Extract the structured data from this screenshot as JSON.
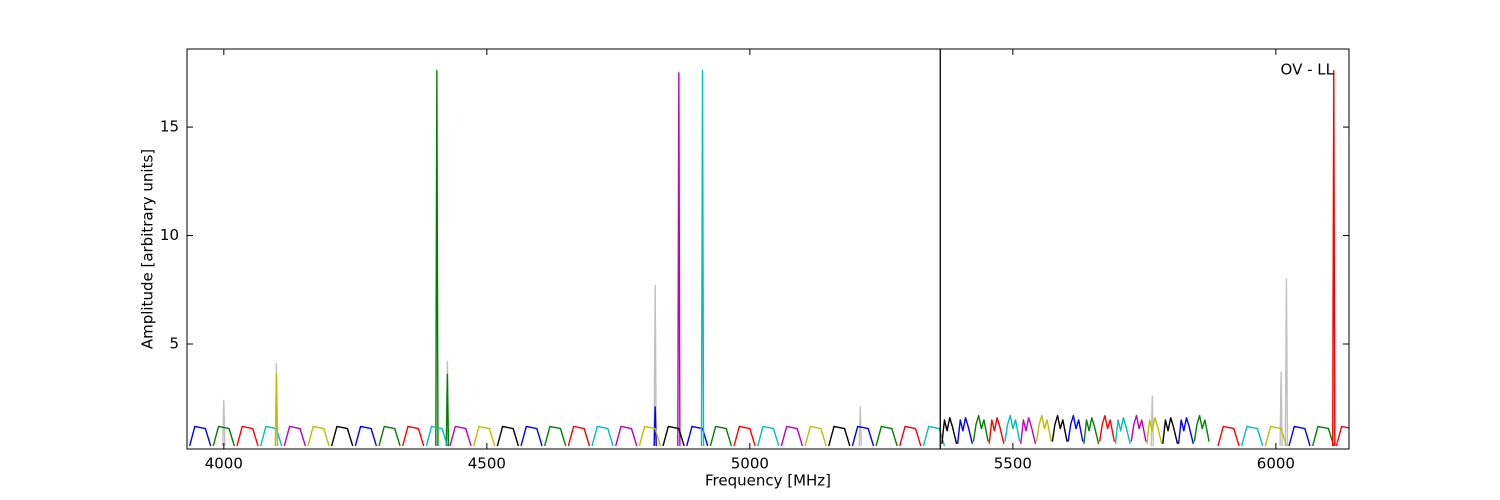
{
  "chart_data": {
    "type": "line",
    "xlabel": "Frequency [MHz]",
    "ylabel": "Amplitude [arbitrary units]",
    "annotation": "OV - LL",
    "xlim": [
      3930,
      6139
    ],
    "ylim": [
      0.16,
      18.6
    ],
    "xticks": [
      4000,
      4500,
      5000,
      5500,
      6000
    ],
    "yticks": [
      5,
      10,
      15
    ],
    "vlines": [
      5362
    ],
    "vline_color": "#000000",
    "grid": false,
    "series": [
      {
        "color": "#c0c0c0",
        "x": [
          3998,
          4000,
          4002,
          4004,
          4098,
          4100,
          4102,
          4104,
          4423,
          4425,
          4427,
          4429,
          4818,
          4820,
          4822,
          4824,
          5208,
          5210,
          5212,
          5214,
          5763,
          5765,
          5767,
          5769,
          6008,
          6010,
          6012,
          6014,
          6018,
          6020,
          6022
        ],
        "values": [
          0.3,
          2.4,
          0.3,
          null,
          0.3,
          4.1,
          0.3,
          null,
          0.3,
          4.2,
          0.3,
          null,
          0.3,
          7.7,
          0.3,
          null,
          0.3,
          2.1,
          0.3,
          null,
          0.3,
          2.6,
          0.3,
          null,
          0.3,
          3.7,
          0.3,
          null,
          0.3,
          8.0,
          0.3
        ]
      },
      {
        "color": "#0000ff",
        "x": [
          3935,
          3945,
          3965,
          3975,
          3980,
          4250,
          4260,
          4280,
          4290,
          4295,
          4565,
          4575,
          4595,
          4605,
          4610,
          4818,
          4820,
          4822,
          4825,
          4880,
          4890,
          4910,
          4920,
          4925,
          5195,
          5205,
          5225,
          5235,
          5240,
          5395,
          5400,
          5405,
          5410,
          5415,
          5423,
          5425,
          5605,
          5610,
          5615,
          5620,
          5625,
          5633,
          5635,
          5815,
          5820,
          5825,
          5830,
          5835,
          5843,
          5845,
          6025,
          6035,
          6055,
          6065
        ],
        "values": [
          0.3,
          1.2,
          1.1,
          0.3,
          null,
          0.3,
          1.2,
          1.1,
          0.3,
          null,
          0.3,
          1.2,
          1.1,
          0.3,
          null,
          0.3,
          2.1,
          0.3,
          null,
          0.3,
          1.2,
          1.1,
          0.3,
          null,
          0.3,
          1.2,
          1.1,
          0.3,
          null,
          0.4,
          1.5,
          1.0,
          1.6,
          1.2,
          0.4,
          null,
          0.5,
          1.3,
          1.7,
          1.1,
          1.5,
          0.5,
          null,
          0.4,
          1.5,
          1.0,
          1.6,
          1.2,
          0.4,
          null,
          0.3,
          1.2,
          1.1,
          0.3
        ]
      },
      {
        "color": "#008000",
        "x": [
          3980,
          3990,
          4010,
          4020,
          4022,
          4295,
          4305,
          4325,
          4335,
          4337,
          4403,
          4405,
          4407,
          4409,
          4423,
          4425,
          4427,
          4429,
          4610,
          4620,
          4640,
          4650,
          4652,
          4925,
          4935,
          4955,
          4965,
          4967,
          5240,
          5250,
          5270,
          5280,
          5282,
          5425,
          5430,
          5435,
          5440,
          5445,
          5453,
          5455,
          5635,
          5640,
          5645,
          5650,
          5655,
          5663,
          5665,
          5845,
          5850,
          5855,
          5860,
          5865,
          5873,
          5875,
          6070,
          6080,
          6100,
          6110
        ],
        "values": [
          0.3,
          1.2,
          1.1,
          0.3,
          null,
          0.3,
          1.2,
          1.1,
          0.3,
          null,
          0.3,
          17.6,
          0.3,
          null,
          0.3,
          3.6,
          0.3,
          null,
          0.3,
          1.2,
          1.1,
          0.3,
          null,
          0.3,
          1.2,
          1.1,
          0.3,
          null,
          0.3,
          1.2,
          1.1,
          0.3,
          null,
          0.5,
          1.3,
          1.7,
          1.1,
          1.5,
          0.5,
          null,
          0.4,
          1.5,
          1.0,
          1.6,
          1.2,
          0.4,
          null,
          0.5,
          1.3,
          1.7,
          1.1,
          1.5,
          0.5,
          null,
          0.3,
          1.2,
          1.1,
          0.3
        ]
      },
      {
        "color": "#ff0000",
        "x": [
          4025,
          4035,
          4055,
          4065,
          4067,
          4340,
          4350,
          4370,
          4380,
          4382,
          4655,
          4665,
          4685,
          4695,
          4697,
          4970,
          4980,
          5000,
          5010,
          5012,
          5285,
          5295,
          5315,
          5325,
          5327,
          5455,
          5460,
          5465,
          5470,
          5475,
          5483,
          5485,
          5665,
          5670,
          5675,
          5680,
          5685,
          5693,
          5695,
          5890,
          5900,
          5920,
          5930,
          5932,
          6108,
          6110,
          6112,
          6113,
          6115,
          6125,
          6145,
          6155
        ],
        "values": [
          0.3,
          1.2,
          1.1,
          0.3,
          null,
          0.3,
          1.2,
          1.1,
          0.3,
          null,
          0.3,
          1.2,
          1.1,
          0.3,
          null,
          0.3,
          1.2,
          1.1,
          0.3,
          null,
          0.3,
          1.2,
          1.1,
          0.3,
          null,
          0.4,
          1.5,
          1.0,
          1.6,
          1.2,
          0.4,
          null,
          0.5,
          1.3,
          1.7,
          1.1,
          1.5,
          0.5,
          null,
          0.3,
          1.2,
          1.1,
          0.3,
          null,
          0.3,
          17.6,
          0.3,
          null,
          0.3,
          1.2,
          1.1,
          0.3
        ]
      },
      {
        "color": "#00bfbf",
        "x": [
          4070,
          4080,
          4100,
          4110,
          4112,
          4385,
          4395,
          4415,
          4425,
          4427,
          4700,
          4710,
          4730,
          4740,
          4742,
          4908,
          4910,
          4912,
          4914,
          5015,
          5025,
          5045,
          5055,
          5057,
          5330,
          5340,
          5360,
          5370,
          5372,
          5485,
          5490,
          5495,
          5500,
          5505,
          5513,
          5515,
          5695,
          5700,
          5705,
          5710,
          5715,
          5723,
          5725,
          5935,
          5945,
          5965,
          5975
        ],
        "values": [
          0.3,
          1.2,
          1.1,
          0.3,
          null,
          0.3,
          1.2,
          1.1,
          0.3,
          null,
          0.3,
          1.2,
          1.1,
          0.3,
          null,
          0.3,
          17.6,
          0.3,
          null,
          0.3,
          1.2,
          1.1,
          0.3,
          null,
          0.3,
          1.2,
          1.1,
          0.3,
          null,
          0.5,
          1.3,
          1.7,
          1.1,
          1.5,
          0.5,
          null,
          0.4,
          1.5,
          1.0,
          1.6,
          1.2,
          0.4,
          null,
          0.3,
          1.2,
          1.1,
          0.3
        ]
      },
      {
        "color": "#bf00bf",
        "x": [
          4115,
          4125,
          4145,
          4155,
          4157,
          4430,
          4440,
          4460,
          4470,
          4472,
          4745,
          4755,
          4775,
          4785,
          4787,
          4863,
          4865,
          4867,
          4869,
          5060,
          5070,
          5090,
          5100,
          5102,
          5515,
          5520,
          5525,
          5530,
          5535,
          5543,
          5545,
          5725,
          5730,
          5735,
          5740,
          5745,
          5753
        ],
        "values": [
          0.3,
          1.2,
          1.1,
          0.3,
          null,
          0.3,
          1.2,
          1.1,
          0.3,
          null,
          0.3,
          1.2,
          1.1,
          0.3,
          null,
          0.3,
          17.5,
          0.3,
          null,
          0.3,
          1.2,
          1.1,
          0.3,
          null,
          0.4,
          1.5,
          1.0,
          1.6,
          1.2,
          0.4,
          null,
          0.5,
          1.3,
          1.7,
          1.1,
          1.5,
          0.5
        ]
      },
      {
        "color": "#bfbf00",
        "x": [
          4098,
          4100,
          4102,
          4104,
          4160,
          4170,
          4190,
          4200,
          4202,
          4475,
          4485,
          4505,
          4515,
          4517,
          4790,
          4800,
          4820,
          4830,
          4832,
          5105,
          5115,
          5135,
          5145,
          5147,
          5545,
          5550,
          5555,
          5560,
          5565,
          5573,
          5575,
          5755,
          5760,
          5765,
          5770,
          5775,
          5783,
          5785,
          5980,
          5990,
          6010,
          6020
        ],
        "values": [
          0.3,
          3.6,
          0.3,
          null,
          0.3,
          1.2,
          1.1,
          0.3,
          null,
          0.3,
          1.2,
          1.1,
          0.3,
          null,
          0.3,
          1.2,
          1.1,
          0.3,
          null,
          0.3,
          1.2,
          1.1,
          0.3,
          null,
          0.5,
          1.3,
          1.7,
          1.1,
          1.5,
          0.5,
          null,
          0.4,
          1.5,
          1.0,
          1.6,
          1.2,
          0.4,
          null,
          0.3,
          1.2,
          1.1,
          0.3
        ]
      },
      {
        "color": "#000000",
        "x": [
          4205,
          4215,
          4235,
          4245,
          4247,
          4520,
          4530,
          4550,
          4560,
          4562,
          4835,
          4845,
          4865,
          4875,
          4877,
          5150,
          5160,
          5180,
          5190,
          5192,
          5365,
          5370,
          5375,
          5380,
          5385,
          5393,
          5395,
          5575,
          5580,
          5585,
          5590,
          5595,
          5603,
          5605,
          5785,
          5790,
          5795,
          5800,
          5805,
          5813
        ],
        "values": [
          0.3,
          1.2,
          1.1,
          0.3,
          null,
          0.3,
          1.2,
          1.1,
          0.3,
          null,
          0.3,
          1.2,
          1.1,
          0.3,
          null,
          0.3,
          1.2,
          1.1,
          0.3,
          null,
          0.4,
          1.5,
          1.0,
          1.6,
          1.2,
          0.4,
          null,
          0.5,
          1.3,
          1.7,
          1.1,
          1.5,
          0.5,
          null,
          0.4,
          1.5,
          1.0,
          1.6,
          1.2,
          0.4
        ]
      }
    ]
  }
}
